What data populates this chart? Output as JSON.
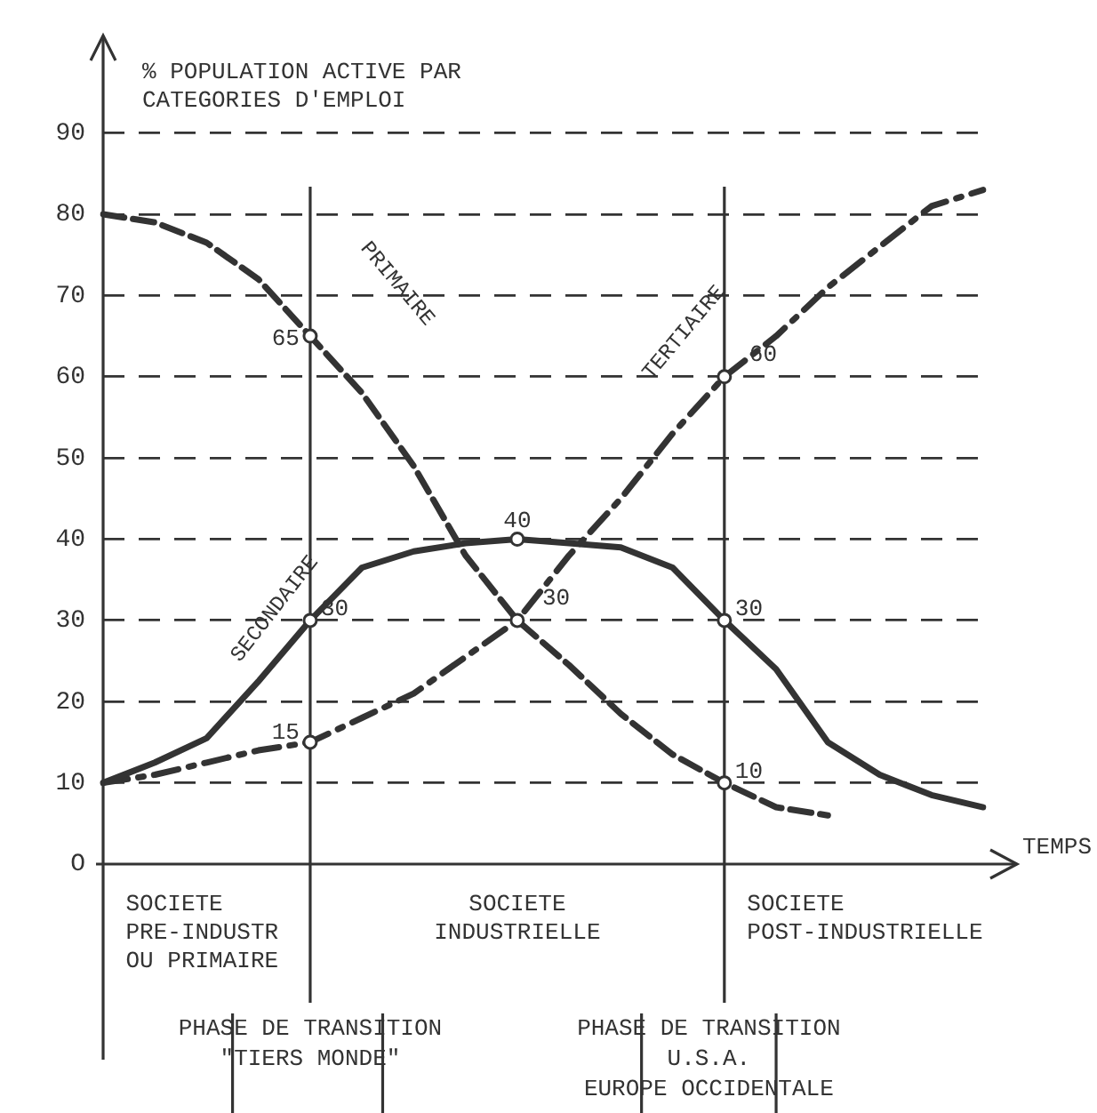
{
  "chart_data": {
    "type": "line",
    "ylabel": "% POPULATION ACTIVE PAR\nCATEGORIES D'EMPLOI",
    "xlabel": "TEMPS",
    "categories": [
      null,
      null,
      null,
      null,
      null,
      null,
      null,
      null,
      null,
      null,
      null,
      null,
      null,
      null,
      null,
      null,
      null,
      null
    ],
    "ylim": [
      0,
      102
    ],
    "yticks": [
      {
        "value": 0,
        "label": "O"
      },
      10,
      20,
      30,
      40,
      50,
      60,
      70,
      80,
      90
    ],
    "tick_labels": "y",
    "grid": "y",
    "series": [
      {
        "name": "PRIMAIRE",
        "color": "#333333",
        "line_style": "dashed",
        "values": [
          80,
          79,
          76.5,
          72,
          65,
          58,
          49,
          38,
          30,
          24.5,
          18.5,
          13.5,
          10,
          7,
          6,
          null,
          null,
          null
        ],
        "value_labels": [
          null,
          null,
          null,
          null,
          "65",
          null,
          null,
          null,
          null,
          null,
          null,
          null,
          "10",
          null,
          null,
          null,
          null,
          null
        ]
      },
      {
        "name": "SECONDAIRE",
        "color": "#333333",
        "line_style": "solid",
        "values": [
          10,
          12.5,
          15.5,
          22.5,
          30,
          36.5,
          38.5,
          39.5,
          40,
          39.5,
          39,
          36.5,
          30,
          24,
          15,
          11,
          8.5,
          7
        ],
        "value_labels": [
          null,
          null,
          null,
          null,
          "30",
          null,
          null,
          null,
          "40",
          null,
          null,
          null,
          "30",
          null,
          null,
          null,
          null,
          null
        ]
      },
      {
        "name": "TERTIAIRE",
        "color": "#333333",
        "line_style": "dashdot",
        "values": [
          10,
          11,
          12.5,
          14,
          15,
          18,
          21,
          25.5,
          30,
          38,
          45,
          53,
          60,
          65,
          71,
          76,
          81,
          83
        ],
        "value_labels": [
          null,
          null,
          null,
          null,
          "15",
          null,
          null,
          null,
          "30",
          null,
          null,
          null,
          "60",
          null,
          null,
          null,
          null,
          null
        ]
      }
    ],
    "annotations": [
      "SOCIETE\nPRE-INDUSTR\nOU PRIMAIRE",
      "SOCIETE\nINDUSTRIELLE",
      "SOCIETE\nPOST-INDUSTRIELLE",
      "PHASE DE TRANSITION\n\"TIERS MONDE\"",
      "PHASE DE TRANSITION\nU.S.A.\nEUROPE OCCIDENTALE"
    ]
  }
}
